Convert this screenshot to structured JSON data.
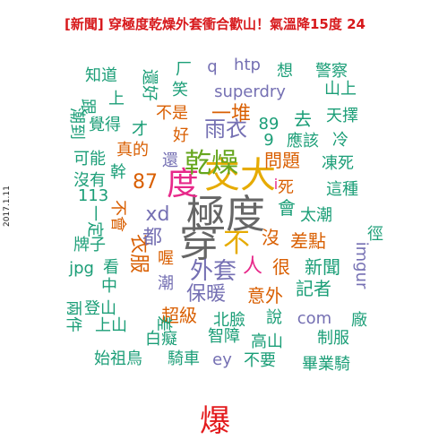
{
  "header": {
    "title": "[新聞] 穿極度乾燥外套衝合歡山！氣溫降15度    24",
    "date": "2017.1.11"
  },
  "footer": {
    "word": "爆"
  },
  "colors": {
    "teal": "#1b9e77",
    "orange": "#d95f02",
    "purple": "#7570b3",
    "pink": "#e7298a",
    "green": "#66a61e",
    "gold": "#e6ab02",
    "grey": "#666666",
    "red": "#e31a1c"
  },
  "words": [
    {
      "text": "極度",
      "color": "#666666"
    },
    {
      "text": "穿",
      "color": "#666666"
    },
    {
      "text": "交大",
      "color": "#e6ab02"
    },
    {
      "text": "度",
      "color": "#e7298a"
    },
    {
      "text": "乾燥",
      "color": "#66a61e"
    },
    {
      "text": "不",
      "color": "#e6ab02"
    },
    {
      "text": "外套",
      "color": "#7570b3"
    },
    {
      "text": "衣服",
      "color": "#d95f02"
    },
    {
      "text": "雨衣",
      "color": "#7570b3"
    },
    {
      "text": "一堆",
      "color": "#d95f02"
    },
    {
      "text": "問題",
      "color": "#d95f02"
    },
    {
      "text": "會",
      "color": "#1b9e77"
    },
    {
      "text": "去",
      "color": "#1b9e77"
    },
    {
      "text": "人",
      "color": "#e7298a"
    },
    {
      "text": "xd",
      "color": "#7570b3"
    },
    {
      "text": "都",
      "color": "#7570b3"
    },
    {
      "text": "87",
      "color": "#d95f02"
    },
    {
      "text": "superdry",
      "color": "#7570b3"
    },
    {
      "text": "保暖",
      "color": "#7570b3"
    },
    {
      "text": "超級",
      "color": "#d95f02"
    },
    {
      "text": "意外",
      "color": "#d95f02"
    },
    {
      "text": "智障",
      "color": "#1b9e77"
    },
    {
      "text": "高山",
      "color": "#1b9e77"
    },
    {
      "text": "新聞",
      "color": "#1b9e77"
    },
    {
      "text": "記者",
      "color": "#1b9e77"
    },
    {
      "text": "com",
      "color": "#7570b3"
    },
    {
      "text": "差點",
      "color": "#d95f02"
    },
    {
      "text": "太潮",
      "color": "#1b9e77"
    },
    {
      "text": "這種",
      "color": "#1b9e77"
    },
    {
      "text": "凍死",
      "color": "#1b9e77"
    },
    {
      "text": "應該",
      "color": "#1b9e77"
    },
    {
      "text": "冷",
      "color": "#1b9e77"
    },
    {
      "text": "天擇",
      "color": "#1b9e77"
    },
    {
      "text": "山上",
      "color": "#1b9e77"
    },
    {
      "text": "警察",
      "color": "#1b9e77"
    },
    {
      "text": "想",
      "color": "#1b9e77"
    },
    {
      "text": "htp",
      "color": "#7570b3"
    },
    {
      "text": "q",
      "color": "#7570b3"
    },
    {
      "text": "厂",
      "color": "#1b9e77"
    },
    {
      "text": "笑",
      "color": "#1b9e77"
    },
    {
      "text": "還好",
      "color": "#1b9e77"
    },
    {
      "text": "上",
      "color": "#1b9e77"
    },
    {
      "text": "知道",
      "color": "#1b9e77"
    },
    {
      "text": "不是",
      "color": "#d95f02"
    },
    {
      "text": "好",
      "color": "#d95f02"
    },
    {
      "text": "才",
      "color": "#1b9e77"
    },
    {
      "text": "覺得",
      "color": "#1b9e77"
    },
    {
      "text": "真的",
      "color": "#d95f02"
    },
    {
      "text": "可能",
      "color": "#1b9e77"
    },
    {
      "text": "沒有",
      "color": "#1b9e77"
    },
    {
      "text": "幹",
      "color": "#1b9e77"
    },
    {
      "text": "還",
      "color": "#7570b3"
    },
    {
      "text": "113",
      "color": "#1b9e77"
    },
    {
      "text": "一定",
      "color": "#1b9e77"
    },
    {
      "text": "牌子",
      "color": "#1b9e77"
    },
    {
      "text": "jpg",
      "color": "#1b9e77"
    },
    {
      "text": "看",
      "color": "#1b9e77"
    },
    {
      "text": "中",
      "color": "#1b9e77"
    },
    {
      "text": "兩件",
      "color": "#1b9e77"
    },
    {
      "text": "登山",
      "color": "#1b9e77"
    },
    {
      "text": "上山",
      "color": "#1b9e77"
    },
    {
      "text": "差",
      "color": "#1b9e77"
    },
    {
      "text": "白癡",
      "color": "#1b9e77"
    },
    {
      "text": "始祖鳥",
      "color": "#1b9e77"
    },
    {
      "text": "騎車",
      "color": "#1b9e77"
    },
    {
      "text": "ey",
      "color": "#7570b3"
    },
    {
      "text": "不要",
      "color": "#1b9e77"
    },
    {
      "text": "畢業騎",
      "color": "#1b9e77"
    },
    {
      "text": "制服",
      "color": "#1b9e77"
    },
    {
      "text": "說",
      "color": "#1b9e77"
    },
    {
      "text": "廠",
      "color": "#1b9e77"
    },
    {
      "text": "北臉",
      "color": "#1b9e77"
    },
    {
      "text": "imgur",
      "color": "#7570b3"
    },
    {
      "text": "徑",
      "color": "#1b9e77"
    },
    {
      "text": "很",
      "color": "#d95f02"
    },
    {
      "text": "沒",
      "color": "#d95f02"
    },
    {
      "text": "死",
      "color": "#d95f02"
    },
    {
      "text": "i",
      "color": "#e7298a"
    },
    {
      "text": "89",
      "color": "#1b9e77"
    },
    {
      "text": "9",
      "color": "#1b9e77"
    },
    {
      "text": "潮",
      "color": "#7570b3"
    },
    {
      "text": "喔",
      "color": "#d95f02"
    },
    {
      "text": "不會",
      "color": "#d95f02"
    },
    {
      "text": "潮到",
      "color": "#1b9e77"
    },
    {
      "text": "跟",
      "color": "#1b9e77"
    }
  ]
}
